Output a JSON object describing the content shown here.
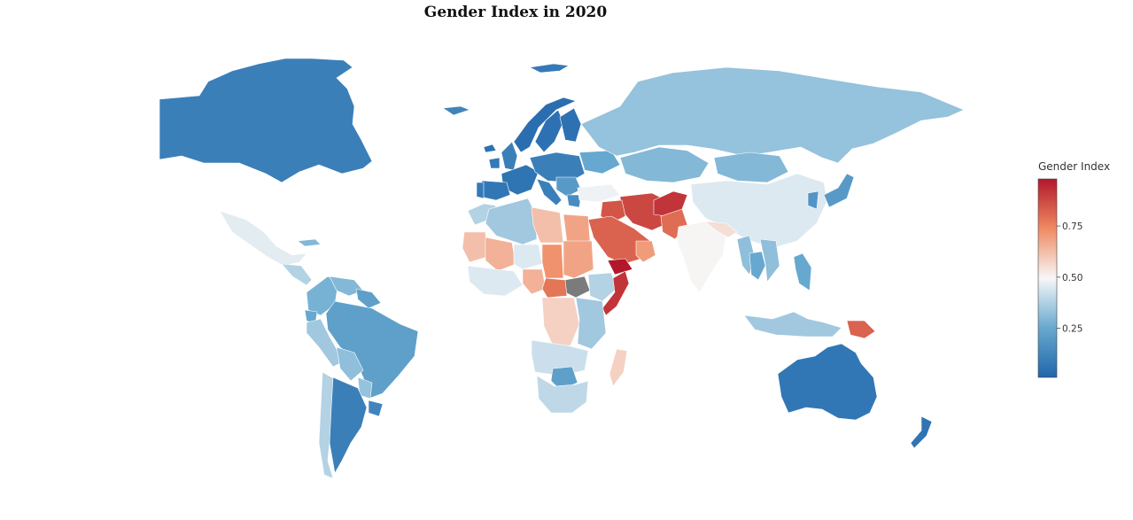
{
  "chart_data": {
    "type": "choropleth",
    "title": "Gender Index in 2020",
    "colorbar": {
      "title": "Gender Index",
      "range": [
        0.01,
        0.98
      ],
      "ticks": [
        "0.25",
        "0.50",
        "0.75"
      ],
      "tick_values": [
        0.25,
        0.5,
        0.75
      ],
      "colorscale": "RdBu (reversed)"
    },
    "no_data_color": "#7b7b7b",
    "regions": [
      {
        "name": "Canada",
        "value": 0.1
      },
      {
        "name": "Greenland",
        "value": 0.08
      },
      {
        "name": "Alaska (USA)",
        "value": 0.12
      },
      {
        "name": "Iceland",
        "value": 0.05
      },
      {
        "name": "Mexico",
        "value": 0.46
      },
      {
        "name": "Cuba",
        "value": 0.3
      },
      {
        "name": "Central America",
        "value": 0.38
      },
      {
        "name": "Colombia",
        "value": 0.28
      },
      {
        "name": "Venezuela",
        "value": 0.3
      },
      {
        "name": "Guianas",
        "value": 0.22
      },
      {
        "name": "Brazil",
        "value": 0.22
      },
      {
        "name": "Ecuador",
        "value": 0.25
      },
      {
        "name": "Peru",
        "value": 0.35
      },
      {
        "name": "Bolivia",
        "value": 0.32
      },
      {
        "name": "Paraguay",
        "value": 0.33
      },
      {
        "name": "Chile",
        "value": 0.38
      },
      {
        "name": "Argentina",
        "value": 0.1
      },
      {
        "name": "Uruguay",
        "value": 0.12
      },
      {
        "name": "Norway",
        "value": 0.04
      },
      {
        "name": "Sweden",
        "value": 0.05
      },
      {
        "name": "Finland",
        "value": 0.05
      },
      {
        "name": "United Kingdom",
        "value": 0.1
      },
      {
        "name": "Ireland",
        "value": 0.08
      },
      {
        "name": "Western Europe",
        "value": 0.06
      },
      {
        "name": "Central Europe",
        "value": 0.1
      },
      {
        "name": "Spain",
        "value": 0.07
      },
      {
        "name": "Portugal",
        "value": 0.08
      },
      {
        "name": "Italy",
        "value": 0.1
      },
      {
        "name": "Balkans",
        "value": 0.2
      },
      {
        "name": "Greece",
        "value": 0.15
      },
      {
        "name": "Ukraine",
        "value": 0.25
      },
      {
        "name": "Russia",
        "value": 0.33
      },
      {
        "name": "Kazakhstan",
        "value": 0.3
      },
      {
        "name": "Mongolia",
        "value": 0.3
      },
      {
        "name": "China",
        "value": 0.45
      },
      {
        "name": "Turkey",
        "value": 0.48
      },
      {
        "name": "Iran",
        "value": 0.88
      },
      {
        "name": "Iraq",
        "value": 0.85
      },
      {
        "name": "Saudi Arabia",
        "value": 0.82
      },
      {
        "name": "Yemen",
        "value": 0.98
      },
      {
        "name": "Oman / UAE",
        "value": 0.7
      },
      {
        "name": "Afghanistan",
        "value": 0.92
      },
      {
        "name": "Pakistan",
        "value": 0.8
      },
      {
        "name": "India",
        "value": 0.5
      },
      {
        "name": "Nepal / Bangladesh",
        "value": 0.55
      },
      {
        "name": "Myanmar",
        "value": 0.32
      },
      {
        "name": "Thailand",
        "value": 0.25
      },
      {
        "name": "Vietnam / Laos",
        "value": 0.32
      },
      {
        "name": "Japan",
        "value": 0.2
      },
      {
        "name": "Korea",
        "value": 0.18
      },
      {
        "name": "Philippines",
        "value": 0.25
      },
      {
        "name": "Indonesia",
        "value": 0.35
      },
      {
        "name": "Papua New Guinea",
        "value": 0.82
      },
      {
        "name": "Australia",
        "value": 0.07
      },
      {
        "name": "New Zealand",
        "value": 0.06
      },
      {
        "name": "Morocco",
        "value": 0.38
      },
      {
        "name": "Algeria",
        "value": 0.35
      },
      {
        "name": "Libya",
        "value": 0.62
      },
      {
        "name": "Egypt",
        "value": 0.68
      },
      {
        "name": "Mauritania",
        "value": 0.62
      },
      {
        "name": "Mali",
        "value": 0.65
      },
      {
        "name": "Niger",
        "value": 0.45
      },
      {
        "name": "Chad",
        "value": 0.72
      },
      {
        "name": "Sudan",
        "value": 0.68
      },
      {
        "name": "South Sudan",
        "value": null
      },
      {
        "name": "Ethiopia",
        "value": 0.38
      },
      {
        "name": "Somalia",
        "value": 0.92
      },
      {
        "name": "West Africa Coast",
        "value": 0.45
      },
      {
        "name": "Nigeria",
        "value": 0.65
      },
      {
        "name": "Central African Republic",
        "value": 0.78
      },
      {
        "name": "DR Congo",
        "value": 0.58
      },
      {
        "name": "Kenya / Tanzania",
        "value": 0.35
      },
      {
        "name": "Angola / Zambia",
        "value": 0.42
      },
      {
        "name": "Zimbabwe",
        "value": 0.22
      },
      {
        "name": "Southern Africa",
        "value": 0.4
      },
      {
        "name": "Madagascar",
        "value": 0.58
      }
    ]
  }
}
